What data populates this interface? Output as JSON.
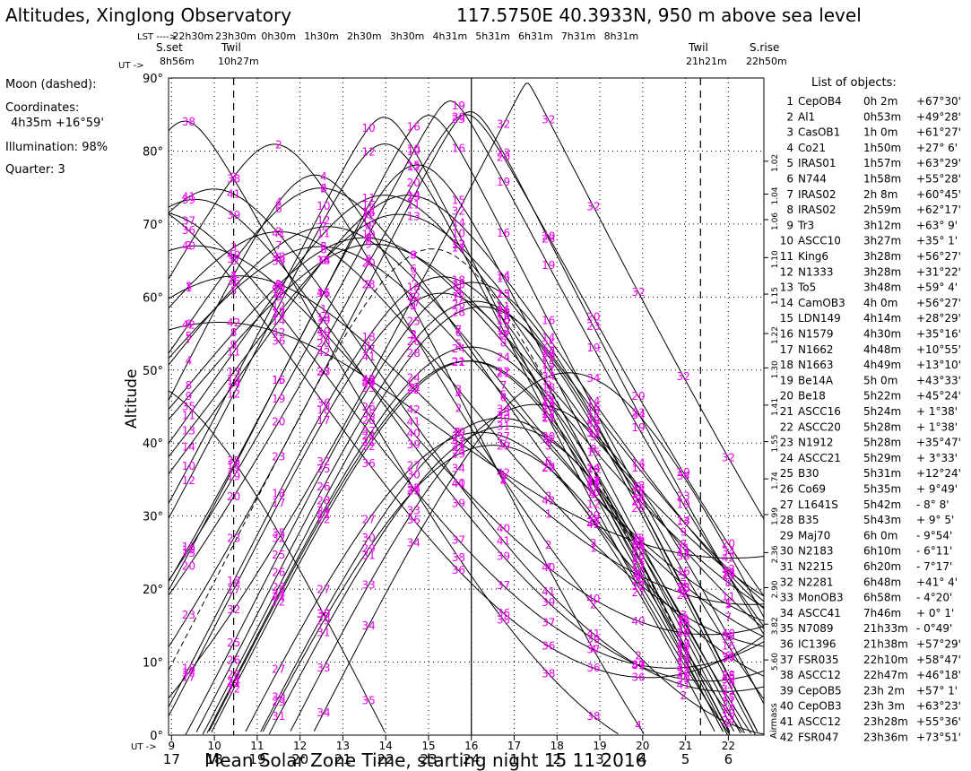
{
  "header": {
    "title": "Altitudes, Xinglong Observatory",
    "location": "117.5750E  40.3933N,  950 m above sea level"
  },
  "lst_row": {
    "label": "LST ---->",
    "ticks": [
      "22h30m",
      "23h30m",
      "0h30m",
      "1h30m",
      "2h30m",
      "3h30m",
      "4h31m",
      "5h31m",
      "6h31m",
      "7h31m",
      "8h31m"
    ]
  },
  "events": {
    "sunset_label": "S.set",
    "sunset_time": "8h56m",
    "twil_label": "Twil",
    "twil_evening": "10h27m",
    "twil_morning": "21h21m",
    "sunrise_label": "S.rise",
    "sunrise_time": "22h50m",
    "ut_arrow": "UT ->"
  },
  "moon": {
    "title": "Moon (dashed):",
    "coord_label": "Coordinates:",
    "coords": "4h35m  +16°59'",
    "illumination": "Illumination:  98%",
    "quarter": "Quarter: 3"
  },
  "list_title": "List of objects:",
  "objects": [
    {
      "n": "1",
      "name": "CepOB4",
      "ra": "0h 2m",
      "dec": "+67°30'"
    },
    {
      "n": "2",
      "name": "Al1",
      "ra": "0h53m",
      "dec": "+49°28'"
    },
    {
      "n": "3",
      "name": "CasOB1",
      "ra": "1h 0m",
      "dec": "+61°27'"
    },
    {
      "n": "4",
      "name": "Co21",
      "ra": "1h50m",
      "dec": "+27° 6'"
    },
    {
      "n": "5",
      "name": "IRAS01",
      "ra": "1h57m",
      "dec": "+63°29'"
    },
    {
      "n": "6",
      "name": "N744",
      "ra": "1h58m",
      "dec": "+55°28'"
    },
    {
      "n": "7",
      "name": "IRAS02",
      "ra": "2h 8m",
      "dec": "+60°45'"
    },
    {
      "n": "8",
      "name": "IRAS02",
      "ra": "2h59m",
      "dec": "+62°17'"
    },
    {
      "n": "9",
      "name": "Tr3",
      "ra": "3h12m",
      "dec": "+63° 9'"
    },
    {
      "n": "10",
      "name": "ASCC10",
      "ra": "3h27m",
      "dec": "+35° 1'"
    },
    {
      "n": "11",
      "name": "King6",
      "ra": "3h28m",
      "dec": "+56°27'"
    },
    {
      "n": "12",
      "name": "N1333",
      "ra": "3h28m",
      "dec": "+31°22'"
    },
    {
      "n": "13",
      "name": "To5",
      "ra": "3h48m",
      "dec": "+59° 4'"
    },
    {
      "n": "14",
      "name": "CamOB3",
      "ra": "4h 0m",
      "dec": "+56°27'"
    },
    {
      "n": "15",
      "name": "LDN149",
      "ra": "4h14m",
      "dec": "+28°29'"
    },
    {
      "n": "16",
      "name": "N1579",
      "ra": "4h30m",
      "dec": "+35°16'"
    },
    {
      "n": "17",
      "name": "N1662",
      "ra": "4h48m",
      "dec": "+10°55'"
    },
    {
      "n": "18",
      "name": "N1663",
      "ra": "4h49m",
      "dec": "+13°10'"
    },
    {
      "n": "19",
      "name": "Be14A",
      "ra": "5h 0m",
      "dec": "+43°33'"
    },
    {
      "n": "20",
      "name": "Be18",
      "ra": "5h22m",
      "dec": "+45°24'"
    },
    {
      "n": "21",
      "name": "ASCC16",
      "ra": "5h24m",
      "dec": "+ 1°38'"
    },
    {
      "n": "22",
      "name": "ASCC20",
      "ra": "5h28m",
      "dec": "+ 1°38'"
    },
    {
      "n": "23",
      "name": "N1912",
      "ra": "5h28m",
      "dec": "+35°47'"
    },
    {
      "n": "24",
      "name": "ASCC21",
      "ra": "5h29m",
      "dec": "+ 3°33'"
    },
    {
      "n": "25",
      "name": "B30",
      "ra": "5h31m",
      "dec": "+12°24'"
    },
    {
      "n": "26",
      "name": "Co69",
      "ra": "5h35m",
      "dec": "+ 9°49'"
    },
    {
      "n": "27",
      "name": "L1641S",
      "ra": "5h42m",
      "dec": "- 8° 8'"
    },
    {
      "n": "28",
      "name": "B35",
      "ra": "5h43m",
      "dec": "+ 9° 5'"
    },
    {
      "n": "29",
      "name": "Maj70",
      "ra": "6h 0m",
      "dec": "- 9°54'"
    },
    {
      "n": "30",
      "name": "N2183",
      "ra": "6h10m",
      "dec": "- 6°11'"
    },
    {
      "n": "31",
      "name": "N2215",
      "ra": "6h20m",
      "dec": "- 7°17'"
    },
    {
      "n": "32",
      "name": "N2281",
      "ra": "6h48m",
      "dec": "+41° 4'"
    },
    {
      "n": "33",
      "name": "MonOB3",
      "ra": "6h58m",
      "dec": "- 4°20'"
    },
    {
      "n": "34",
      "name": "ASCC41",
      "ra": "7h46m",
      "dec": "+ 0° 1'"
    },
    {
      "n": "35",
      "name": "N7089",
      "ra": "21h33m",
      "dec": "- 0°49'"
    },
    {
      "n": "36",
      "name": "IC1396",
      "ra": "21h38m",
      "dec": "+57°29'"
    },
    {
      "n": "37",
      "name": "FSR035",
      "ra": "22h10m",
      "dec": "+58°47'"
    },
    {
      "n": "38",
      "name": "ASCC12",
      "ra": "22h47m",
      "dec": "+46°18'"
    },
    {
      "n": "39",
      "name": "CepOB5",
      "ra": "23h 2m",
      "dec": "+57° 1'"
    },
    {
      "n": "40",
      "name": "CepOB3",
      "ra": "23h 3m",
      "dec": "+63°23'"
    },
    {
      "n": "41",
      "name": "ASCC12",
      "ra": "23h28m",
      "dec": "+55°36'"
    },
    {
      "n": "42",
      "name": "FSR047",
      "ra": "23h36m",
      "dec": "+73°51'"
    }
  ],
  "airmass_label": "Airmass",
  "airmass_ticks": [
    "1.02",
    "1.04",
    "1.06",
    "1.10",
    "1.15",
    "1.22",
    "1.30",
    "1.41",
    "1.55",
    "1.74",
    "1.99",
    "2.36",
    "2.90",
    "3.82",
    "5.60"
  ],
  "colors": {
    "label": "#ee00ee",
    "line": "#000000",
    "grid": "#000000"
  },
  "chart_data": {
    "type": "line",
    "title": "Altitudes, Xinglong Observatory",
    "xlabel": "Mean Solar Zone Time, starting night 15 11 2016",
    "ylabel": "Altitude",
    "ut_label": "UT ->",
    "ut_ticks": [
      "9",
      "10",
      "11",
      "12",
      "13",
      "14",
      "15",
      "16",
      "17",
      "18",
      "19",
      "20",
      "21",
      "22"
    ],
    "local_ticks": [
      "17",
      "18",
      "19",
      "20",
      "21",
      "22",
      "23",
      "24",
      "1",
      "2",
      "3",
      "4",
      "5",
      "6"
    ],
    "y_ticks": [
      "0°",
      "10°",
      "20°",
      "30°",
      "40°",
      "50°",
      "60°",
      "70°",
      "80°",
      "90°"
    ],
    "xlim": [
      8.93,
      22.83
    ],
    "ylim": [
      0,
      90
    ],
    "midnight_ut": 16,
    "twilight_ut": [
      10.45,
      21.35
    ],
    "site_latitude": 40.3933,
    "lst_at_ut0": 13.45,
    "grid": true,
    "moon": {
      "ra_hours": 4.583,
      "dec_deg": 16.98,
      "dashed": true
    },
    "series": [
      {
        "name": "1",
        "ra_hours": 0.033,
        "dec_deg": 67.5
      },
      {
        "name": "2",
        "ra_hours": 0.883,
        "dec_deg": 49.467
      },
      {
        "name": "3",
        "ra_hours": 1.0,
        "dec_deg": 61.45
      },
      {
        "name": "4",
        "ra_hours": 1.833,
        "dec_deg": 27.1
      },
      {
        "name": "5",
        "ra_hours": 1.95,
        "dec_deg": 63.483
      },
      {
        "name": "6",
        "ra_hours": 1.967,
        "dec_deg": 55.467
      },
      {
        "name": "7",
        "ra_hours": 2.133,
        "dec_deg": 60.75
      },
      {
        "name": "8",
        "ra_hours": 2.983,
        "dec_deg": 62.283
      },
      {
        "name": "9",
        "ra_hours": 3.2,
        "dec_deg": 63.15
      },
      {
        "name": "10",
        "ra_hours": 3.45,
        "dec_deg": 35.017
      },
      {
        "name": "11",
        "ra_hours": 3.467,
        "dec_deg": 56.45
      },
      {
        "name": "12",
        "ra_hours": 3.467,
        "dec_deg": 31.367
      },
      {
        "name": "13",
        "ra_hours": 3.8,
        "dec_deg": 59.067
      },
      {
        "name": "14",
        "ra_hours": 4.0,
        "dec_deg": 56.45
      },
      {
        "name": "15",
        "ra_hours": 4.233,
        "dec_deg": 28.483
      },
      {
        "name": "16",
        "ra_hours": 4.5,
        "dec_deg": 35.267
      },
      {
        "name": "17",
        "ra_hours": 4.8,
        "dec_deg": 10.917
      },
      {
        "name": "18",
        "ra_hours": 4.817,
        "dec_deg": 13.167
      },
      {
        "name": "19",
        "ra_hours": 5.0,
        "dec_deg": 43.55
      },
      {
        "name": "20",
        "ra_hours": 5.367,
        "dec_deg": 45.4
      },
      {
        "name": "21",
        "ra_hours": 5.4,
        "dec_deg": 1.633
      },
      {
        "name": "22",
        "ra_hours": 5.467,
        "dec_deg": 1.633
      },
      {
        "name": "23",
        "ra_hours": 5.467,
        "dec_deg": 35.783
      },
      {
        "name": "24",
        "ra_hours": 5.483,
        "dec_deg": 3.55
      },
      {
        "name": "25",
        "ra_hours": 5.517,
        "dec_deg": 12.4
      },
      {
        "name": "26",
        "ra_hours": 5.583,
        "dec_deg": 9.817
      },
      {
        "name": "27",
        "ra_hours": 5.7,
        "dec_deg": -8.133
      },
      {
        "name": "28",
        "ra_hours": 5.717,
        "dec_deg": 9.083
      },
      {
        "name": "29",
        "ra_hours": 6.0,
        "dec_deg": -9.9
      },
      {
        "name": "30",
        "ra_hours": 6.167,
        "dec_deg": -6.183
      },
      {
        "name": "31",
        "ra_hours": 6.333,
        "dec_deg": -7.283
      },
      {
        "name": "32",
        "ra_hours": 6.8,
        "dec_deg": 41.067
      },
      {
        "name": "33",
        "ra_hours": 6.967,
        "dec_deg": -4.333
      },
      {
        "name": "34",
        "ra_hours": 7.767,
        "dec_deg": 0.017
      },
      {
        "name": "35",
        "ra_hours": 21.55,
        "dec_deg": -0.817
      },
      {
        "name": "36",
        "ra_hours": 21.633,
        "dec_deg": 57.483
      },
      {
        "name": "37",
        "ra_hours": 22.167,
        "dec_deg": 58.783
      },
      {
        "name": "38",
        "ra_hours": 22.783,
        "dec_deg": 46.3
      },
      {
        "name": "39",
        "ra_hours": 23.033,
        "dec_deg": 57.017
      },
      {
        "name": "40",
        "ra_hours": 23.05,
        "dec_deg": 63.383
      },
      {
        "name": "41",
        "ra_hours": 23.467,
        "dec_deg": 55.6
      },
      {
        "name": "42",
        "ra_hours": 23.6,
        "dec_deg": 73.85
      }
    ]
  }
}
